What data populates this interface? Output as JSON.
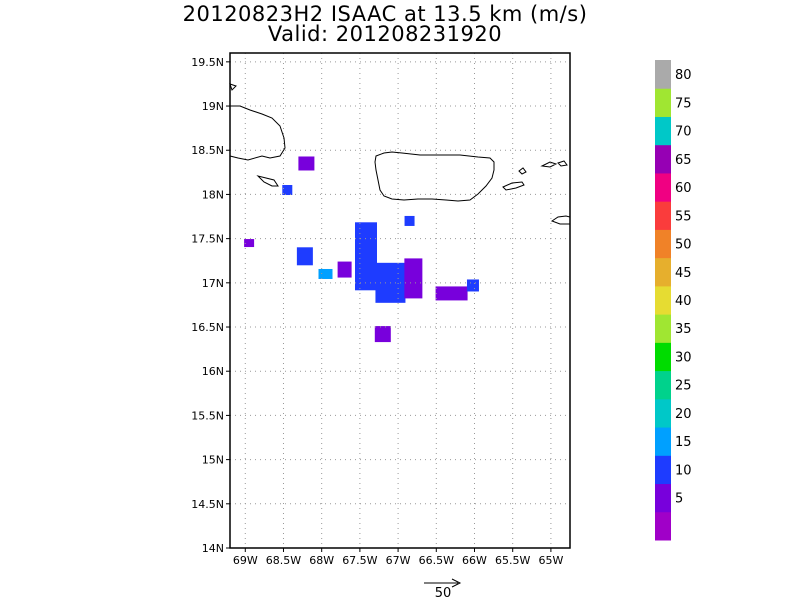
{
  "chart_data": {
    "type": "heatmap",
    "title": "20120823H2 ISAAC at 13.5 km (m/s)",
    "subtitle": "Valid: 201208231920",
    "x_ticks": [
      "69W",
      "68.5W",
      "68W",
      "67.5W",
      "67W",
      "66.5W",
      "66W",
      "65.5W",
      "65W"
    ],
    "y_ticks": [
      "14N",
      "14.5N",
      "15N",
      "15.5N",
      "16N",
      "16.5N",
      "17N",
      "17.5N",
      "18N",
      "18.5N",
      "19N",
      "19.5N"
    ],
    "xlim": [
      -69.2,
      -64.75
    ],
    "ylim": [
      14.0,
      19.6
    ],
    "grid": true,
    "colorbar": {
      "placement": "right",
      "labels": [
        "5",
        "10",
        "15",
        "20",
        "25",
        "30",
        "35",
        "40",
        "45",
        "50",
        "55",
        "60",
        "65",
        "70",
        "75",
        "80"
      ],
      "colors": [
        "#a000c8",
        "#7800dc",
        "#1e3cff",
        "#00a0ff",
        "#00c8c8",
        "#00d28c",
        "#00dc00",
        "#a0e632",
        "#e6dc32",
        "#e6af2d",
        "#f08228",
        "#fa3c3c",
        "#f00082",
        "#9600b4",
        "#00c8c8",
        "#a0e632",
        "#aaaaaa"
      ]
    },
    "reference_vector": {
      "label": "50",
      "units": "m/s"
    },
    "wind_clusters": [
      {
        "lon": -68.2,
        "lat": 18.35,
        "speed": 8
      },
      {
        "lon": -68.45,
        "lat": 18.05,
        "speed": 13
      },
      {
        "lon": -68.95,
        "lat": 17.45,
        "speed": 8
      },
      {
        "lon": -68.22,
        "lat": 17.3,
        "speed": 13
      },
      {
        "lon": -67.95,
        "lat": 17.1,
        "speed": 18
      },
      {
        "lon": -67.7,
        "lat": 17.15,
        "speed": 7
      },
      {
        "lon": -67.42,
        "lat": 17.3,
        "speed": 14
      },
      {
        "lon": -67.1,
        "lat": 17.0,
        "speed": 13
      },
      {
        "lon": -66.8,
        "lat": 17.05,
        "speed": 7
      },
      {
        "lon": -66.85,
        "lat": 17.7,
        "speed": 13
      },
      {
        "lon": -66.3,
        "lat": 16.88,
        "speed": 8
      },
      {
        "lon": -66.02,
        "lat": 16.97,
        "speed": 13
      },
      {
        "lon": -67.2,
        "lat": 16.42,
        "speed": 9
      }
    ]
  }
}
